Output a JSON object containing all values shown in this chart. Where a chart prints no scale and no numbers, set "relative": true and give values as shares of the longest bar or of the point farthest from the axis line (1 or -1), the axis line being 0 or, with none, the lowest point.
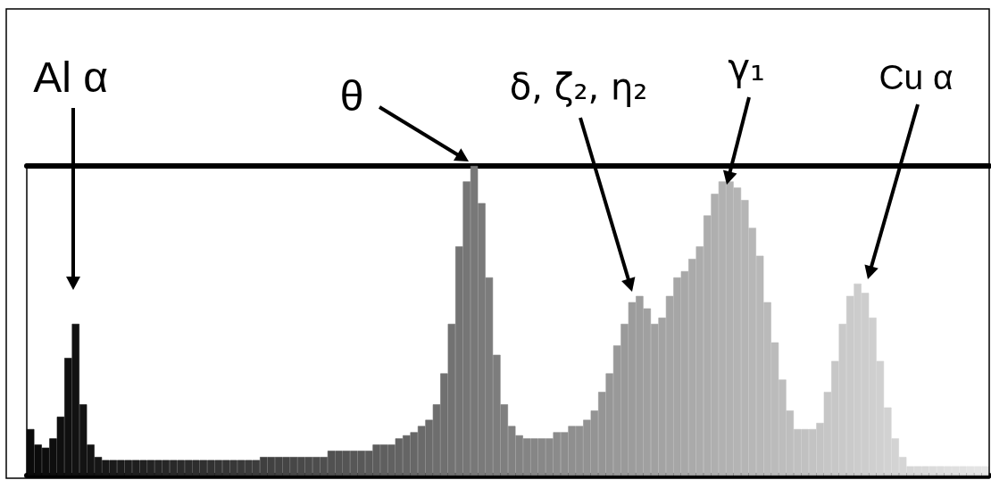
{
  "chart_data": {
    "type": "bar",
    "relative": true,
    "tick_labels": false,
    "categories": [
      null,
      null,
      null,
      null,
      null,
      null,
      null,
      null,
      null,
      null,
      null,
      null,
      null,
      null,
      null,
      null,
      null,
      null,
      null,
      null,
      null,
      null,
      null,
      null,
      null,
      null,
      null,
      null,
      null,
      null,
      null,
      null,
      null,
      null,
      null,
      null,
      null,
      null,
      null,
      null,
      null,
      null,
      null,
      null,
      null,
      null,
      null,
      null,
      null,
      null,
      null,
      null,
      null,
      null,
      null,
      null,
      null,
      null,
      null,
      null,
      null,
      null,
      null,
      null,
      null,
      null,
      null,
      null,
      null,
      null,
      null,
      null,
      null,
      null,
      null,
      null,
      null,
      null,
      null,
      null,
      null,
      null,
      null,
      null,
      null,
      null,
      null,
      null,
      null,
      null,
      null,
      null,
      null,
      null,
      null,
      null,
      null,
      null,
      null,
      null,
      null,
      null,
      null,
      null,
      null,
      null,
      null,
      null,
      null,
      null,
      null,
      null,
      null,
      null,
      null,
      null,
      null,
      null,
      null,
      null,
      null,
      null,
      null,
      null,
      null,
      null,
      null,
      null
    ],
    "values": [
      0.15,
      0.1,
      0.09,
      0.12,
      0.19,
      0.38,
      0.49,
      0.23,
      0.1,
      0.06,
      0.05,
      0.05,
      0.05,
      0.05,
      0.05,
      0.05,
      0.05,
      0.05,
      0.05,
      0.05,
      0.05,
      0.05,
      0.05,
      0.05,
      0.05,
      0.05,
      0.05,
      0.05,
      0.05,
      0.05,
      0.05,
      0.06,
      0.06,
      0.06,
      0.06,
      0.06,
      0.06,
      0.06,
      0.06,
      0.06,
      0.08,
      0.08,
      0.08,
      0.08,
      0.08,
      0.08,
      0.1,
      0.1,
      0.1,
      0.12,
      0.13,
      0.14,
      0.16,
      0.18,
      0.23,
      0.33,
      0.49,
      0.74,
      0.95,
      1,
      0.88,
      0.64,
      0.39,
      0.23,
      0.16,
      0.13,
      0.12,
      0.12,
      0.12,
      0.12,
      0.14,
      0.14,
      0.16,
      0.16,
      0.18,
      0.21,
      0.27,
      0.33,
      0.42,
      0.49,
      0.56,
      0.58,
      0.54,
      0.49,
      0.51,
      0.58,
      0.64,
      0.66,
      0.7,
      0.74,
      0.84,
      0.91,
      0.95,
      0.95,
      0.93,
      0.89,
      0.8,
      0.71,
      0.56,
      0.43,
      0.31,
      0.21,
      0.15,
      0.15,
      0.15,
      0.17,
      0.27,
      0.37,
      0.49,
      0.58,
      0.62,
      0.59,
      0.51,
      0.37,
      0.22,
      0.12,
      0.06,
      0.03,
      0.03,
      0.03,
      0.03,
      0.03,
      0.03,
      0.03,
      0.03,
      0.03,
      0.03,
      0.03
    ],
    "colors": [
      "#0a0a0a",
      "#0b0b0b",
      "#0d0d0d",
      "#0e0e0e",
      "#0f0f0f",
      "#101010",
      "#121212",
      "#131313",
      "#141414",
      "#161616",
      "#181818",
      "#1a1a1a",
      "#1c1c1c",
      "#1e1e1e",
      "#1f1f1f",
      "#212121",
      "#232323",
      "#252525",
      "#272727",
      "#292929",
      "#2b2b2b",
      "#2c2c2c",
      "#2e2e2e",
      "#303030",
      "#323232",
      "#343434",
      "#363636",
      "#383838",
      "#393939",
      "#3b3b3b",
      "#3d3d3d",
      "#3f3f3f",
      "#414141",
      "#434343",
      "#454545",
      "#474747",
      "#494949",
      "#4b4b4b",
      "#4d4d4d",
      "#4f4f4f",
      "#515151",
      "#535353",
      "#555555",
      "#575757",
      "#585858",
      "#5b5b5b",
      "#5d5d5d",
      "#5f5f5f",
      "#616161",
      "#636363",
      "#656565",
      "#676767",
      "#6a6a6a",
      "#6c6c6c",
      "#6e6e6e",
      "#707070",
      "#727272",
      "#747474",
      "#767676",
      "#787878",
      "#7a7a7a",
      "#7c7c7c",
      "#7d7d7d",
      "#7f7f7f",
      "#818181",
      "#828282",
      "#848484",
      "#868686",
      "#888888",
      "#898989",
      "#8b8b8b",
      "#8d8d8d",
      "#8f8f8f",
      "#909090",
      "#929292",
      "#949494",
      "#959595",
      "#979797",
      "#999999",
      "#9a9a9a",
      "#9c9c9c",
      "#9e9e9e",
      "#a0a0a0",
      "#a1a1a1",
      "#a3a3a3",
      "#a5a5a5",
      "#a6a6a6",
      "#a8a8a8",
      "#aaaaaa",
      "#acacac",
      "#adadad",
      "#afafaf",
      "#b1b1b1",
      "#b2b2b2",
      "#b4b4b4",
      "#b5b5b5",
      "#b7b7b7",
      "#b8b8b8",
      "#bababa",
      "#bbbbbb",
      "#bdbdbd",
      "#bebebe",
      "#c0c0c0",
      "#c1c1c1",
      "#c3c3c3",
      "#c4c4c4",
      "#c6c6c6",
      "#c7c7c7",
      "#c9c9c9",
      "#cacaca",
      "#cccccc",
      "#cdcdcd",
      "#cfcfcf",
      "#d0d0d0",
      "#d2d2d2",
      "#d3d3d3",
      "#d5d5d5",
      "#d6d6d6",
      "#d8d8d8",
      "#d9d9d9",
      "#dbdbdb",
      "#dcdcdc",
      "#dedede",
      "#dfdfdf",
      "#e1e1e1",
      "#e3e3e3",
      "#e4e4e4",
      "#e6e6e6"
    ],
    "annotations": [
      "Al α",
      "θ",
      "δ, ζ₂, η₂",
      "γ₁",
      "Cu α"
    ]
  }
}
